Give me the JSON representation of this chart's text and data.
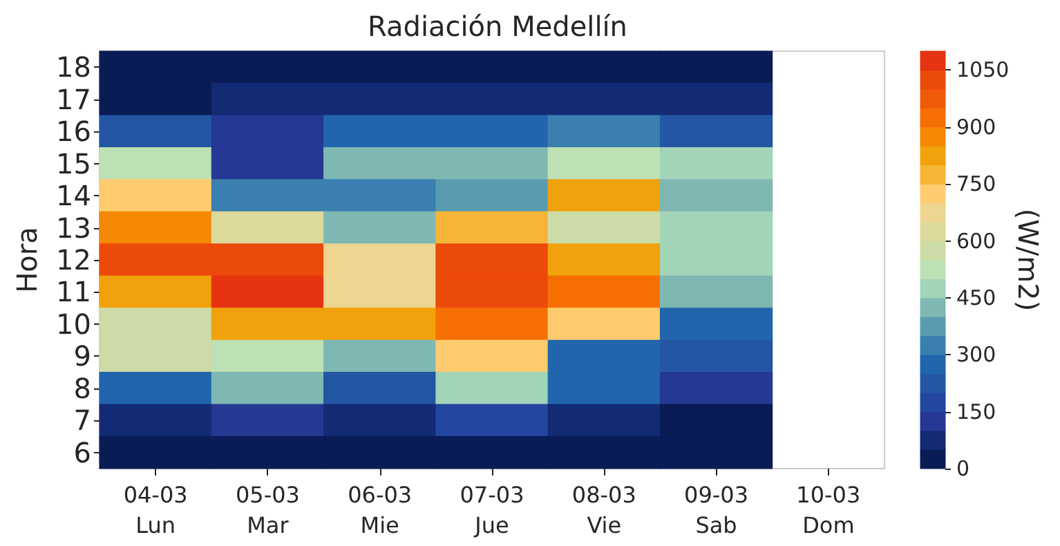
{
  "chart_data": {
    "type": "heatmap",
    "title": "Radiación Medellín",
    "ylabel": "Hora",
    "clabel": "(W/m2)",
    "categories": [
      "04-03\nLun",
      "05-03\nMar",
      "06-03\nMie",
      "07-03\nJue",
      "08-03\nVie",
      "09-03\nSab",
      "10-03\nDom"
    ],
    "y_categories": [
      "18",
      "17",
      "16",
      "15",
      "14",
      "13",
      "12",
      "11",
      "10",
      "9",
      "8",
      "7",
      "6"
    ],
    "cells": [
      [
        25,
        25,
        25,
        25,
        25,
        25,
        null
      ],
      [
        25,
        75,
        75,
        75,
        75,
        75,
        null
      ],
      [
        225,
        125,
        275,
        275,
        325,
        225,
        null
      ],
      [
        525,
        125,
        425,
        425,
        525,
        475,
        null
      ],
      [
        725,
        325,
        325,
        375,
        825,
        425,
        null
      ],
      [
        875,
        625,
        425,
        775,
        575,
        475,
        null
      ],
      [
        1025,
        1025,
        675,
        1025,
        825,
        475,
        null
      ],
      [
        825,
        1075,
        675,
        1025,
        925,
        425,
        null
      ],
      [
        575,
        825,
        825,
        925,
        725,
        275,
        null
      ],
      [
        575,
        525,
        425,
        725,
        275,
        225,
        null
      ],
      [
        275,
        425,
        225,
        475,
        275,
        125,
        null
      ],
      [
        75,
        125,
        75,
        175,
        75,
        25,
        null
      ],
      [
        25,
        25,
        25,
        25,
        25,
        25,
        null
      ]
    ],
    "colors": [
      "#0a1c55",
      "#132a75",
      "#243894",
      "#2346a0",
      "#2356a3",
      "#2166ac",
      "#3a7fb0",
      "#5b9bb0",
      "#7fb8b2",
      "#a2d4b8",
      "#bde0b4",
      "#cddca6",
      "#dcd99a",
      "#eed590",
      "#fecb6f",
      "#f6b536",
      "#f0a10b",
      "#f48805",
      "#f66f03",
      "#f05a0b",
      "#ec4a0a",
      "#e63312"
    ],
    "clim": [
      0,
      1100
    ],
    "cticks": [
      0,
      150,
      300,
      450,
      600,
      750,
      900,
      1050
    ]
  }
}
